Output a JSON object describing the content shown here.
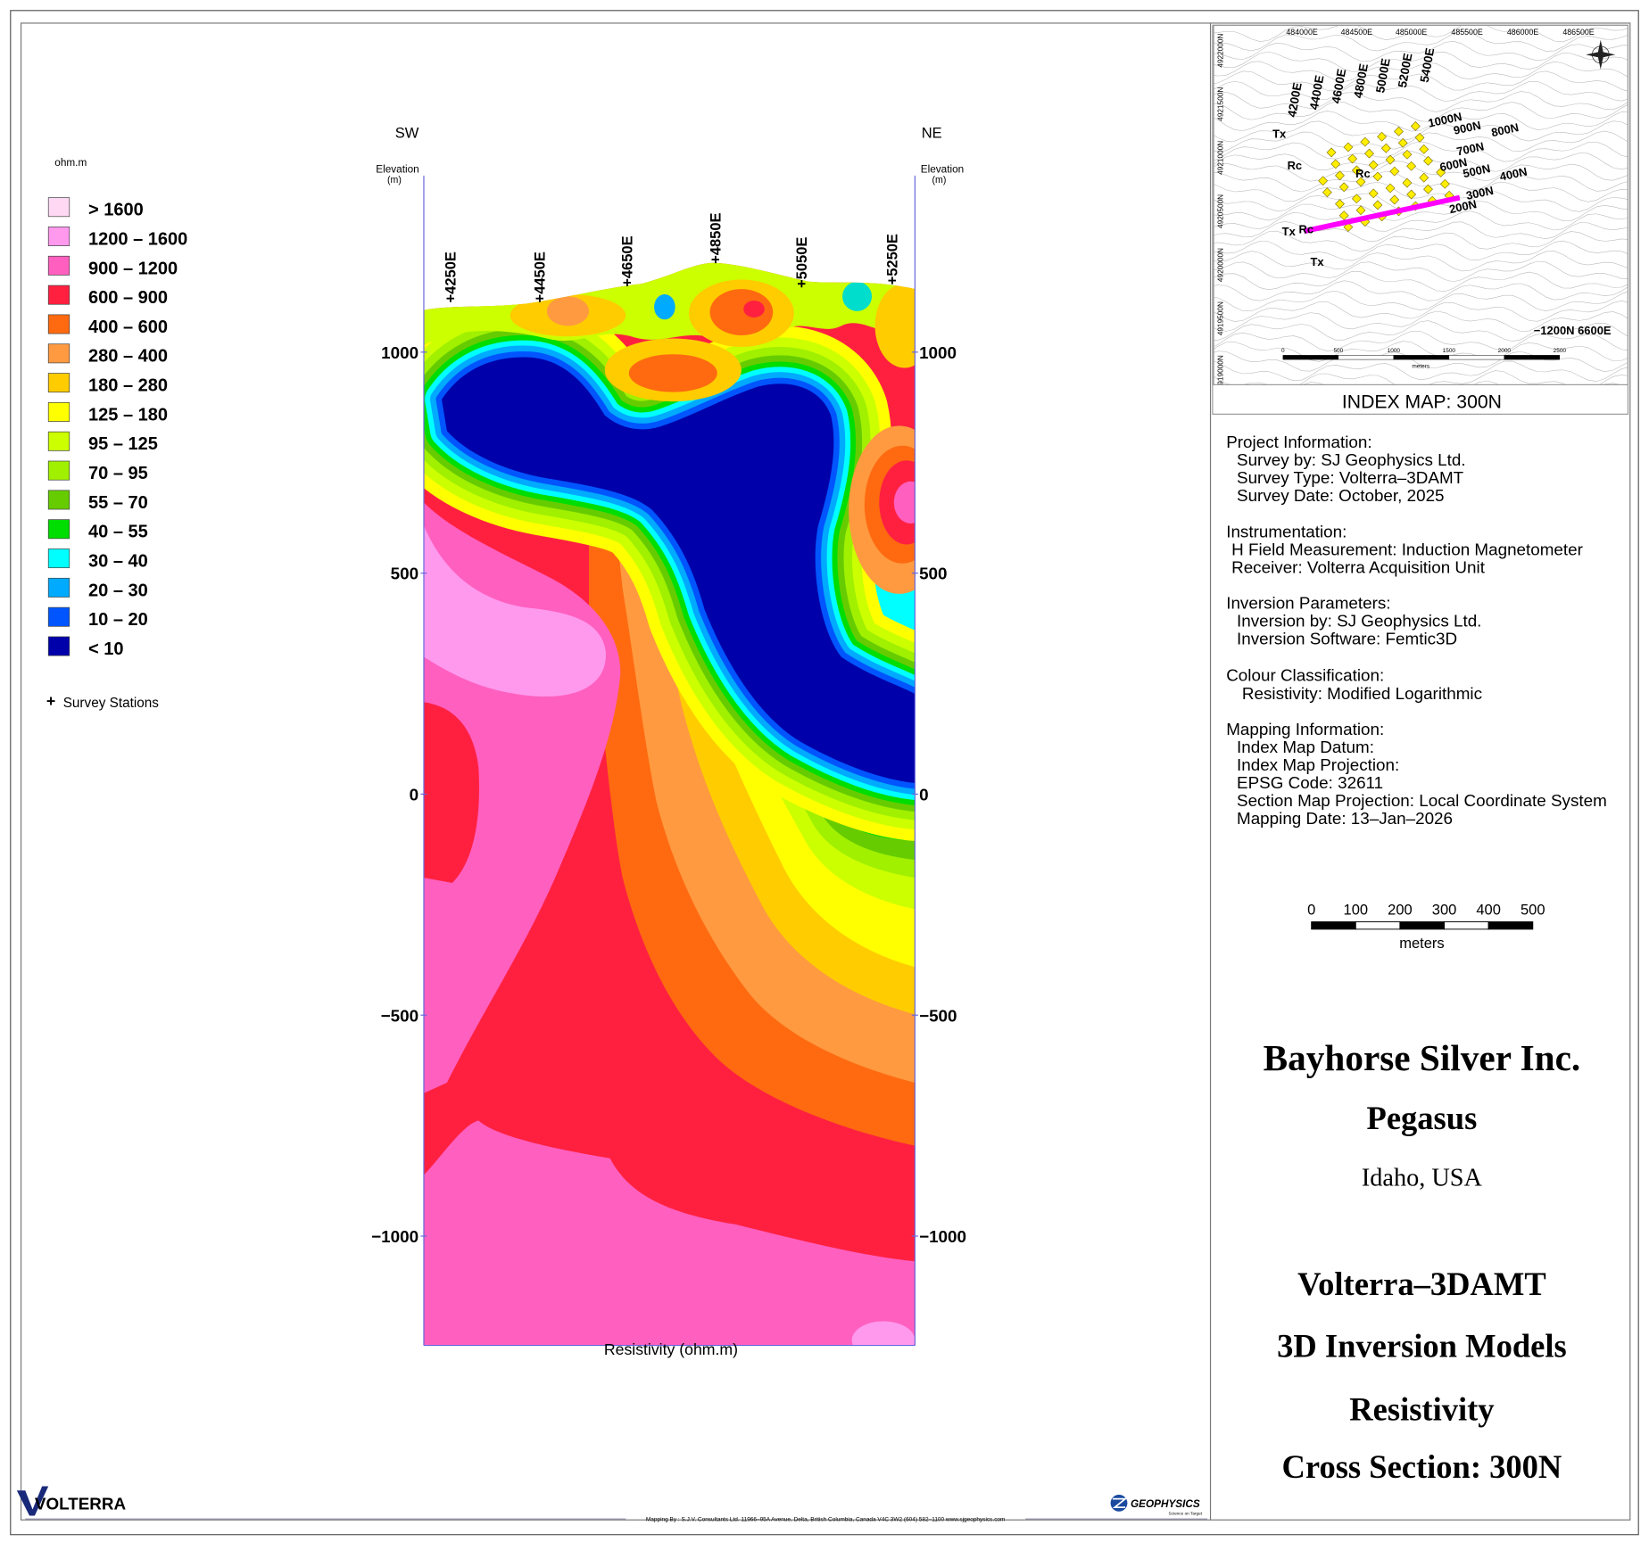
{
  "section": {
    "sw": "SW",
    "ne": "NE",
    "elevation_label": "Elevation",
    "elevation_unit": "(m)",
    "y_ticks": [
      "1000",
      "500",
      "0",
      "−500",
      "−1000"
    ],
    "stations": [
      "+4250E",
      "+4450E",
      "+4650E",
      "+4850E",
      "+5050E",
      "+5250E"
    ],
    "x_label": "Resistivity (ohm.m)"
  },
  "legend": {
    "unit": "ohm.m",
    "items": [
      "> 1600",
      "1200 – 1600",
      "900 – 1200",
      "600 – 900",
      "400 – 600",
      "280 – 400",
      "180 – 280",
      "125 – 180",
      "95 – 125",
      "70 – 95",
      "55 – 70",
      "40 – 55",
      "30 – 40",
      "20 – 30",
      "10 – 20",
      "< 10"
    ],
    "stations": "Survey Stations"
  },
  "index_map": {
    "title": "INDEX MAP: 300N",
    "eastings": [
      "484000E",
      "484500E",
      "485000E",
      "485500E",
      "486000E",
      "486500E"
    ],
    "northings": [
      "4922000N",
      "4921500N",
      "4921000N",
      "4920500N",
      "4920000N",
      "4919500N",
      "4919000N"
    ],
    "lines_e": [
      "4200E",
      "4400E",
      "4600E",
      "4800E",
      "5000E",
      "5200E",
      "5400E"
    ],
    "lines_n": [
      "1000N",
      "900N",
      "800N",
      "700N",
      "600N",
      "500N",
      "400N",
      "300N",
      "200N"
    ],
    "tx": [
      "Tx",
      "Tx",
      "Tx"
    ],
    "rc": [
      "Rc",
      "Rc",
      "Rc"
    ],
    "origin": "−1200N 6600E",
    "scale": [
      "0",
      "500",
      "1000",
      "1500",
      "2000",
      "2500"
    ],
    "scale_unit": "meters"
  },
  "project_info": [
    {
      "heading": "Project Information:",
      "lines": [
        "Survey by: SJ Geophysics Ltd.",
        "Survey Type: Volterra–3DAMT",
        "Survey Date: October, 2025"
      ]
    },
    {
      "heading": "Instrumentation:",
      "lines": [
        "H Field Measurement: Induction Magnetometer",
        "Receiver: Volterra Acquisition Unit"
      ]
    },
    {
      "heading": "Inversion Parameters:",
      "lines": [
        "Inversion by: SJ Geophysics Ltd.",
        "Inversion Software: Femtic3D"
      ]
    },
    {
      "heading": "Colour Classification:",
      "lines": [
        "Resistivity: Modified Logarithmic"
      ]
    },
    {
      "heading": "Mapping Information:",
      "lines": [
        "Index Map Datum:",
        "Index Map Projection:",
        "EPSG Code: 32611",
        "Section Map Projection: Local Coordinate System",
        "Mapping Date: 13–Jan–2026"
      ]
    }
  ],
  "scale_bar": {
    "labels": [
      "0",
      "100",
      "200",
      "300",
      "400",
      "500"
    ],
    "unit": "meters"
  },
  "titles": {
    "company": "Bayhorse Silver Inc.",
    "project": "Pegasus",
    "location": "Idaho, USA",
    "survey": "Volterra–3DAMT",
    "model": "3D Inversion Models",
    "parameter": "Resistivity",
    "section": "Cross Section: 300N"
  },
  "footer": "Mapping By : S.J.V. Consultants Ltd.  11966–95A Avenue, Delta, British Columbia, Canada V4C 3W2 (604) 582–1100   www.sjgeophysics.com",
  "logos": {
    "volterra": "VOLTERRA",
    "geophysics": "GEOPHYSICS",
    "tagline": "Science on Target"
  }
}
